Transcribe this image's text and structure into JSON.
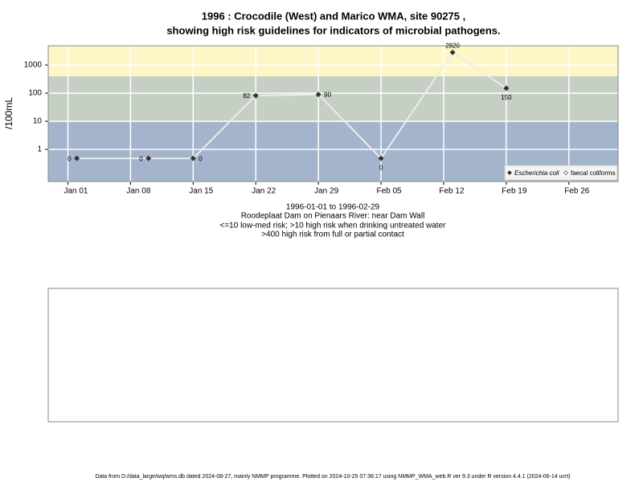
{
  "chart_data": {
    "type": "line",
    "title": "1996 : Crocodile (West) and Marico WMA, site 90275 ,",
    "subtitle": "showing high risk guidelines for indicators of microbial pathogens.",
    "y_label": "/100mL",
    "notes": [
      "1996-01-01 to 1996-02-29",
      "Roodeplaat Dam on Pienaars River: near Dam Wall",
      "<=10 low-med risk; >10 high risk when drinking untreated water",
      ">400 high risk from full or partial contact"
    ],
    "footer": "Data from D:/data_large/wq/wms.db dated 2024-08-27, mainly NMMP programme. Plotted on 2024-10-25 07:36:17 using NMMP_WMA_web.R ver 9.3 under R version 4.4.1 (2024-06-14 ucrt)",
    "x": [
      2,
      10,
      15,
      22,
      29,
      36,
      44,
      50
    ],
    "xlim": [
      -1.2,
      62.5
    ],
    "xticks": [
      {
        "value": 1,
        "label": "Jan 01"
      },
      {
        "value": 8,
        "label": "Jan 08"
      },
      {
        "value": 15,
        "label": "Jan 15"
      },
      {
        "value": 22,
        "label": "Jan 22"
      },
      {
        "value": 29,
        "label": "Jan 29"
      },
      {
        "value": 36,
        "label": "Feb 05"
      },
      {
        "value": 43,
        "label": "Feb 12"
      },
      {
        "value": 50,
        "label": "Feb 19"
      },
      {
        "value": 57,
        "label": "Feb 26"
      }
    ],
    "ylim": [
      0.072,
      4850
    ],
    "yticks": [
      1,
      10,
      100,
      1000
    ],
    "log_y": true,
    "grid": true,
    "thresholds": [
      10,
      400
    ],
    "band_colors": [
      "#a3b4cc",
      "#c5cfc3",
      "#fdf6c6"
    ],
    "legend": "bottom-right",
    "series": [
      {
        "name": "Escherichia coli",
        "color": "#333333",
        "line_color": "#ececec",
        "values": [
          0.48,
          0.48,
          0.48,
          82,
          90,
          0.48,
          2820,
          150
        ],
        "value_labels": [
          "0",
          "0",
          "0",
          "82",
          "90",
          "0",
          "2820",
          "150"
        ]
      },
      {
        "name": "faecal coliforms",
        "color": "#333333",
        "line_color": "#ececec",
        "values": [
          null,
          null,
          null,
          null,
          null,
          null,
          null,
          null
        ]
      }
    ]
  }
}
